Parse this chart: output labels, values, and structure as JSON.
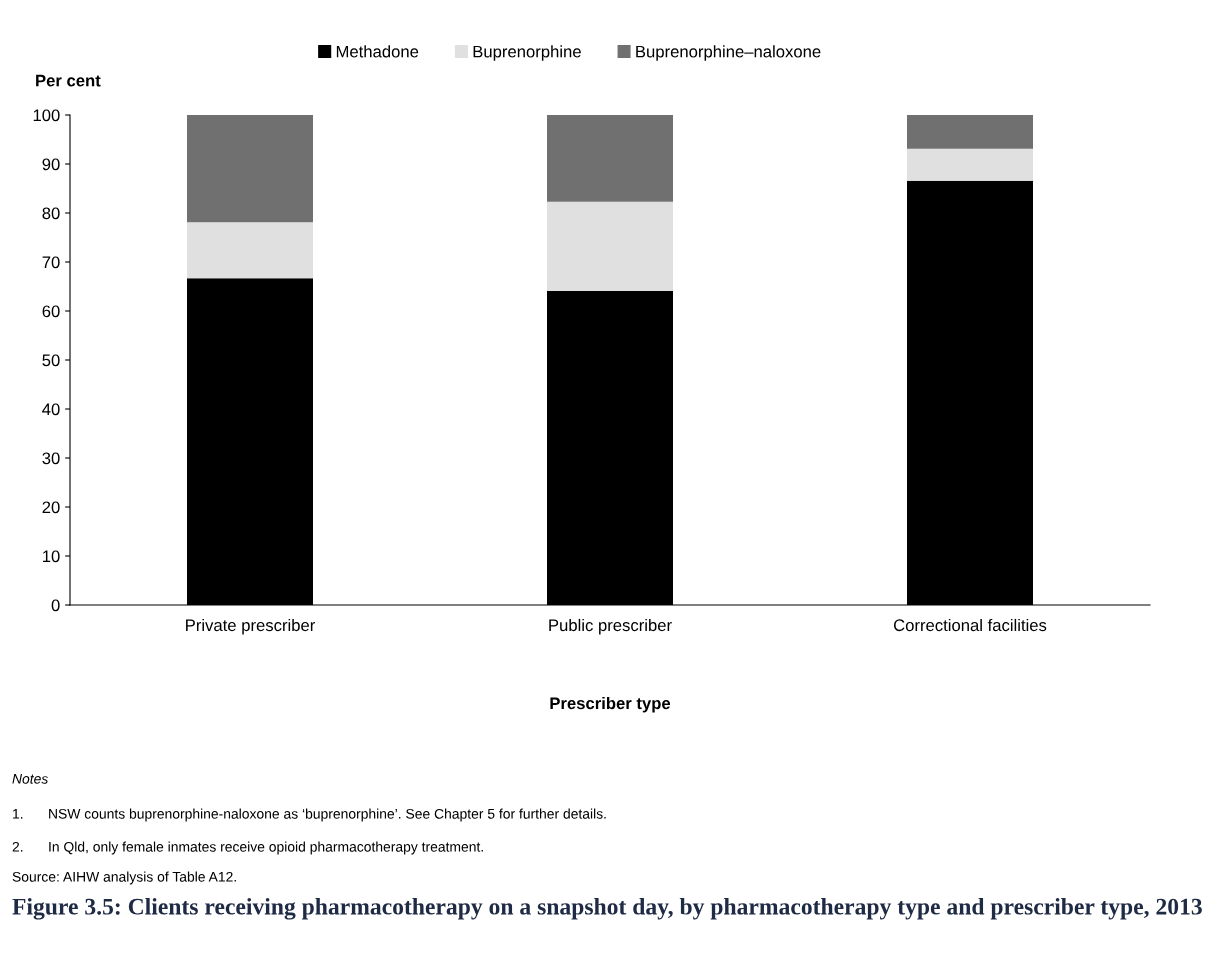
{
  "chart_data": {
    "type": "bar",
    "stacked": true,
    "title": "Figure 3.5: Clients receiving pharmacotherapy on a snapshot day, by pharmacotherapy type and prescriber type, 2013",
    "ylabel": "Per cent",
    "xlabel": "Prescriber type",
    "categories": [
      "Private prescriber",
      "Public prescriber",
      "Correctional facilities"
    ],
    "series": [
      {
        "name": "Methadone",
        "color": "#000000",
        "values": [
          66.7,
          64.1,
          86.6
        ]
      },
      {
        "name": "Buprenorphine",
        "color": "#e0e0e0",
        "values": [
          11.4,
          18.2,
          6.5
        ]
      },
      {
        "name": "Buprenorphine–naloxone",
        "color": "#707070",
        "values": [
          21.9,
          17.7,
          6.9
        ]
      }
    ],
    "ylim": [
      0,
      100
    ],
    "yticks": [
      0,
      10,
      20,
      30,
      40,
      50,
      60,
      70,
      80,
      90,
      100
    ],
    "grid": false,
    "legend": "top",
    "annotations": [
      "Notes",
      "1.\tNSW counts buprenorphine-naloxone as ‘buprenorphine’. See Chapter 5 for further details.",
      "2.\tIn Qld, only female inmates receive opioid pharmacotherapy treatment.",
      "Source: AIHW analysis of Table A12."
    ]
  }
}
